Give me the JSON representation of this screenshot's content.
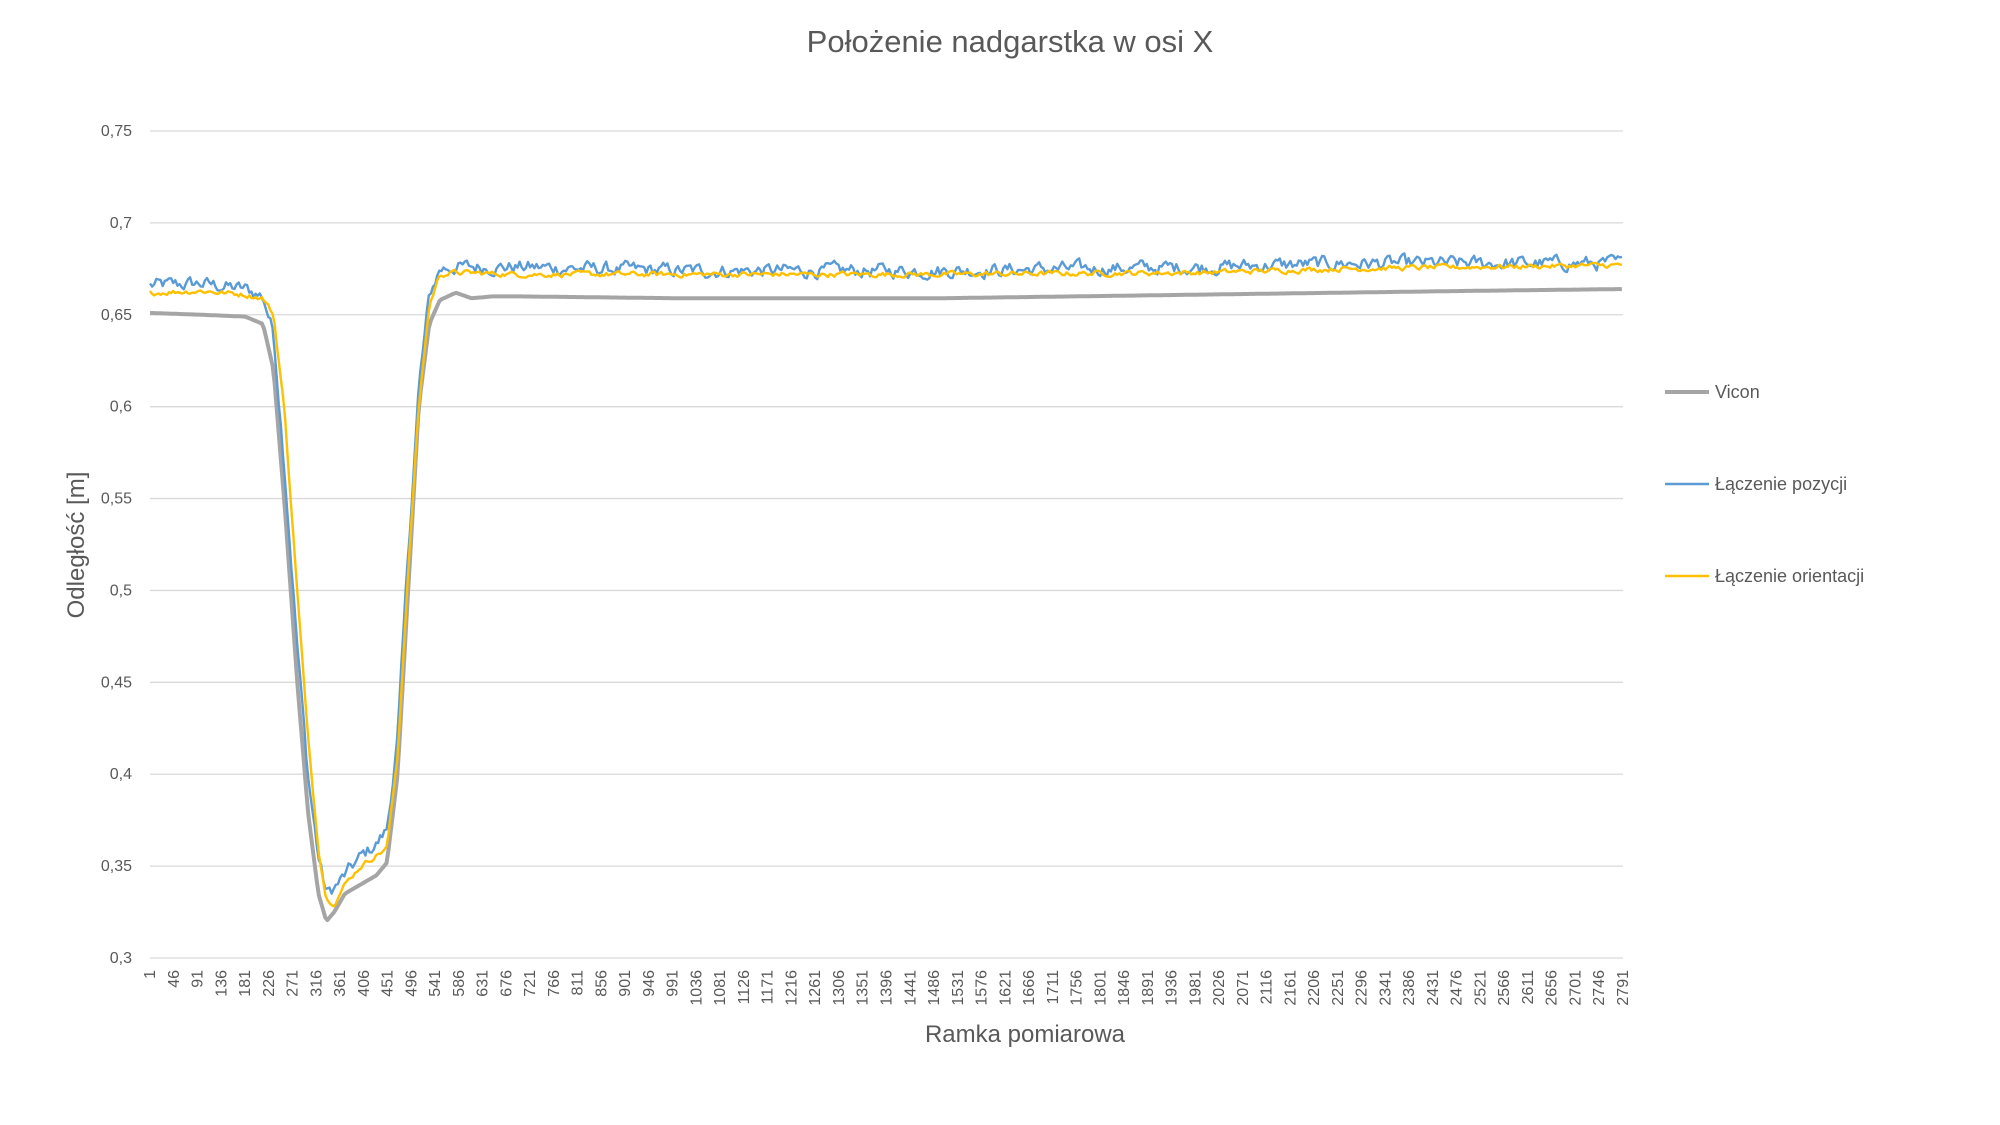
{
  "chart_data": {
    "type": "line",
    "title": "Położenie nadgarstka w osi X",
    "xlabel": "Ramka pomiarowa",
    "ylabel": "Odległość [m]",
    "ylim": [
      0.3,
      0.75
    ],
    "y_ticks": [
      "0,3",
      "0,35",
      "0,4",
      "0,45",
      "0,5",
      "0,55",
      "0,6",
      "0,65",
      "0,7",
      "0,75"
    ],
    "y_tick_values": [
      0.3,
      0.35,
      0.4,
      0.45,
      0.5,
      0.55,
      0.6,
      0.65,
      0.7,
      0.75
    ],
    "x_ticks": [
      "1",
      "46",
      "91",
      "136",
      "181",
      "226",
      "271",
      "316",
      "361",
      "406",
      "451",
      "496",
      "541",
      "586",
      "631",
      "676",
      "721",
      "766",
      "811",
      "856",
      "901",
      "946",
      "991",
      "1036",
      "1081",
      "1126",
      "1171",
      "1216",
      "1261",
      "1306",
      "1351",
      "1396",
      "1441",
      "1486",
      "1531",
      "1576",
      "1621",
      "1666",
      "1711",
      "1756",
      "1801",
      "1846",
      "1891",
      "1936",
      "1981",
      "2026",
      "2071",
      "2116",
      "2161",
      "2206",
      "2251",
      "2296",
      "2341",
      "2386",
      "2431",
      "2476",
      "2521",
      "2566",
      "2611",
      "2656",
      "2701",
      "2746",
      "2791"
    ],
    "xlim": [
      1,
      2791
    ],
    "grid": true,
    "legend_position": "right",
    "series": [
      {
        "name": "Vicon",
        "color": "#a5a5a5",
        "noise": 0,
        "x": [
          1,
          100,
          181,
          215,
          235,
          255,
          280,
          300,
          320,
          335,
          350,
          370,
          400,
          430,
          450,
          470,
          490,
          510,
          530,
          550,
          580,
          610,
          650,
          700,
          1000,
          1500,
          2000,
          2500,
          2791
        ],
        "y": [
          0.651,
          0.65,
          0.649,
          0.645,
          0.62,
          0.55,
          0.45,
          0.38,
          0.335,
          0.32,
          0.325,
          0.335,
          0.34,
          0.345,
          0.352,
          0.4,
          0.5,
          0.6,
          0.645,
          0.658,
          0.662,
          0.659,
          0.66,
          0.66,
          0.659,
          0.659,
          0.661,
          0.663,
          0.664
        ]
      },
      {
        "name": "Łączenie pozycji",
        "color": "#5b9bd5",
        "noise": 0.004,
        "x": [
          1,
          100,
          181,
          215,
          235,
          255,
          280,
          300,
          320,
          335,
          350,
          370,
          400,
          430,
          450,
          470,
          490,
          510,
          530,
          550,
          580,
          700,
          1000,
          1500,
          2000,
          2250,
          2500,
          2791
        ],
        "y": [
          0.666,
          0.667,
          0.664,
          0.66,
          0.64,
          0.57,
          0.47,
          0.4,
          0.355,
          0.335,
          0.338,
          0.345,
          0.355,
          0.362,
          0.37,
          0.42,
          0.52,
          0.61,
          0.66,
          0.675,
          0.676,
          0.676,
          0.674,
          0.674,
          0.676,
          0.678,
          0.678,
          0.678
        ]
      },
      {
        "name": "Łączenie orientacji",
        "color": "#ffc000",
        "noise": 0.0015,
        "x": [
          1,
          100,
          181,
          215,
          235,
          255,
          280,
          300,
          320,
          335,
          350,
          370,
          400,
          430,
          450,
          470,
          490,
          510,
          530,
          550,
          580,
          700,
          1000,
          1500,
          2000,
          2250,
          2500,
          2791
        ],
        "y": [
          0.662,
          0.663,
          0.661,
          0.659,
          0.65,
          0.6,
          0.5,
          0.42,
          0.36,
          0.332,
          0.33,
          0.34,
          0.35,
          0.356,
          0.36,
          0.41,
          0.51,
          0.6,
          0.655,
          0.672,
          0.673,
          0.672,
          0.672,
          0.672,
          0.673,
          0.675,
          0.676,
          0.677
        ]
      }
    ]
  }
}
